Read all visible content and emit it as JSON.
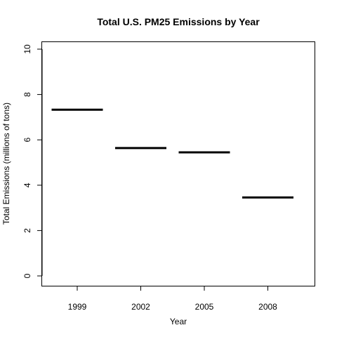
{
  "chart_data": {
    "type": "bar",
    "title": "Total U.S. PM25 Emissions by Year",
    "xlabel": "Year",
    "ylabel": "Total Emissions (millions of tons)",
    "categories": [
      "1999",
      "2002",
      "2005",
      "2008"
    ],
    "values": [
      7.33,
      5.64,
      5.45,
      3.46
    ],
    "ylim": [
      0,
      10
    ],
    "yticks": [
      "0",
      "2",
      "4",
      "6",
      "8",
      "10"
    ],
    "grid": false,
    "legend": "none",
    "bar_color": "#000000"
  }
}
